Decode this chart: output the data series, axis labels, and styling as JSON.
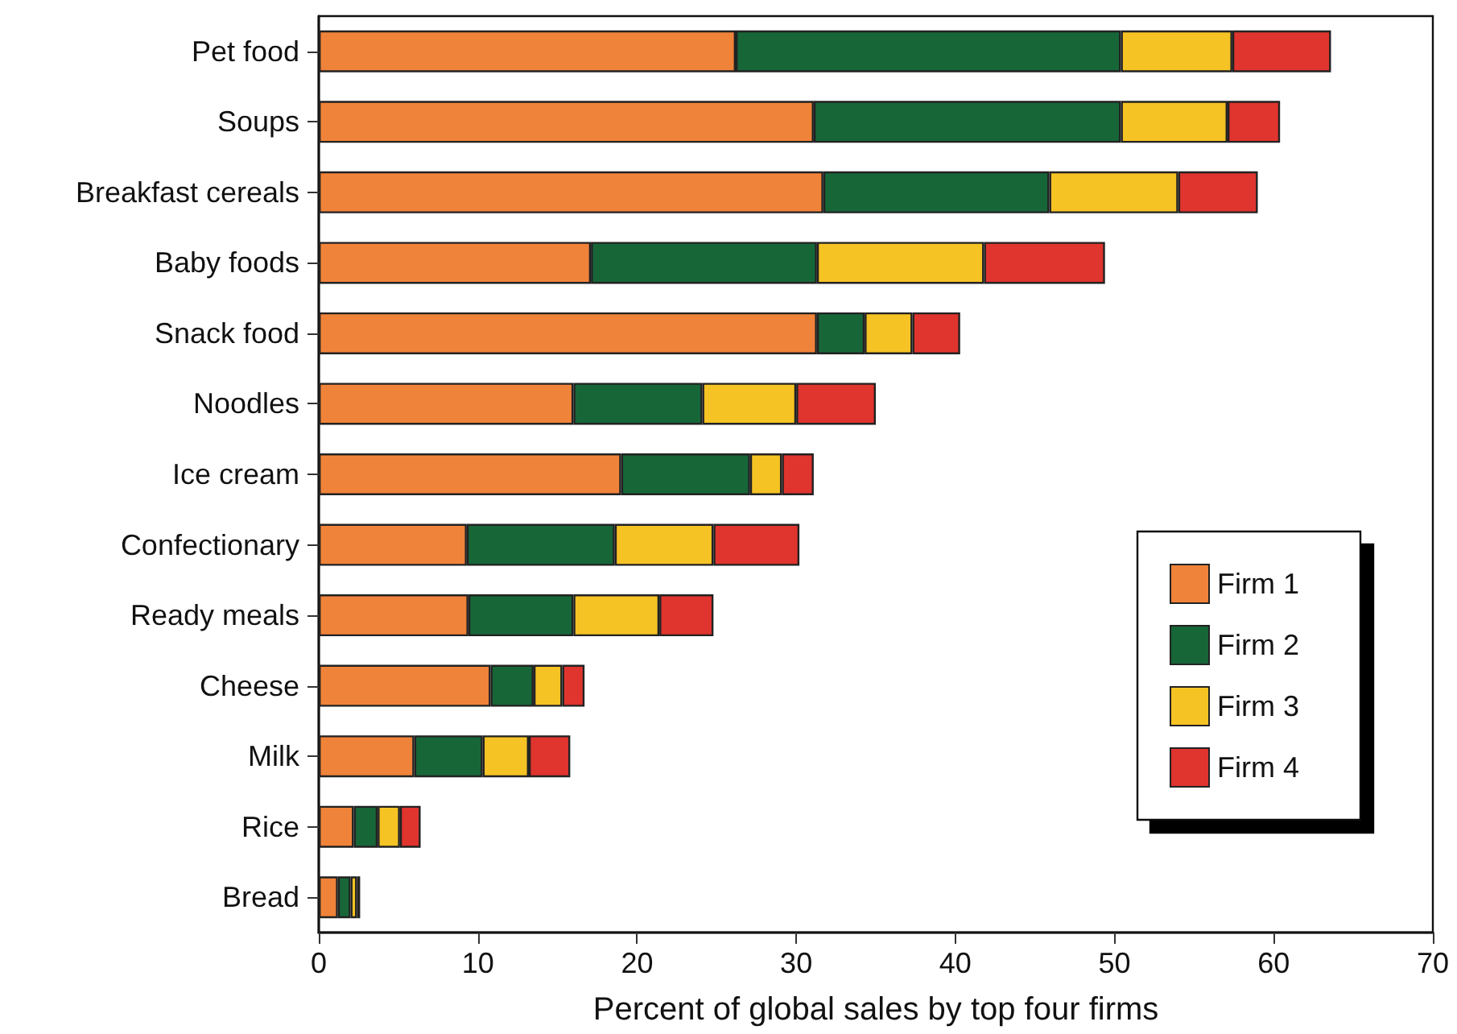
{
  "chart_data": {
    "type": "bar",
    "orientation": "horizontal",
    "stacked": true,
    "xlabel": "Percent of global sales by top four firms",
    "categories": [
      "Pet food",
      "Soups",
      "Breakfast cereals",
      "Baby foods",
      "Snack food",
      "Noodles",
      "Ice cream",
      "Confectionary",
      "Ready meals",
      "Cheese",
      "Milk",
      "Rice",
      "Bread"
    ],
    "series": [
      {
        "name": "Firm 1",
        "color": "#f0833a",
        "values": [
          26.2,
          31.1,
          31.7,
          17.1,
          31.3,
          16.0,
          19.0,
          9.3,
          9.4,
          10.8,
          6.0,
          2.2,
          1.2
        ]
      },
      {
        "name": "Firm 2",
        "color": "#176638",
        "values": [
          24.2,
          19.3,
          14.2,
          14.2,
          3.0,
          8.1,
          8.1,
          9.3,
          6.6,
          2.7,
          4.3,
          1.5,
          0.8
        ]
      },
      {
        "name": "Firm 3",
        "color": "#f6c325",
        "values": [
          7.0,
          6.7,
          8.1,
          10.5,
          3.0,
          5.9,
          2.0,
          6.2,
          5.4,
          1.8,
          2.9,
          1.4,
          0.4
        ]
      },
      {
        "name": "Firm 4",
        "color": "#e0342e",
        "values": [
          6.2,
          3.3,
          5.0,
          7.6,
          3.0,
          5.0,
          2.0,
          5.4,
          3.4,
          1.4,
          2.6,
          1.3,
          0.2
        ]
      }
    ],
    "xlim": [
      0,
      70
    ],
    "xticks": [
      0,
      10,
      20,
      30,
      40,
      50,
      60,
      70
    ],
    "grid": false,
    "legend": "right"
  }
}
